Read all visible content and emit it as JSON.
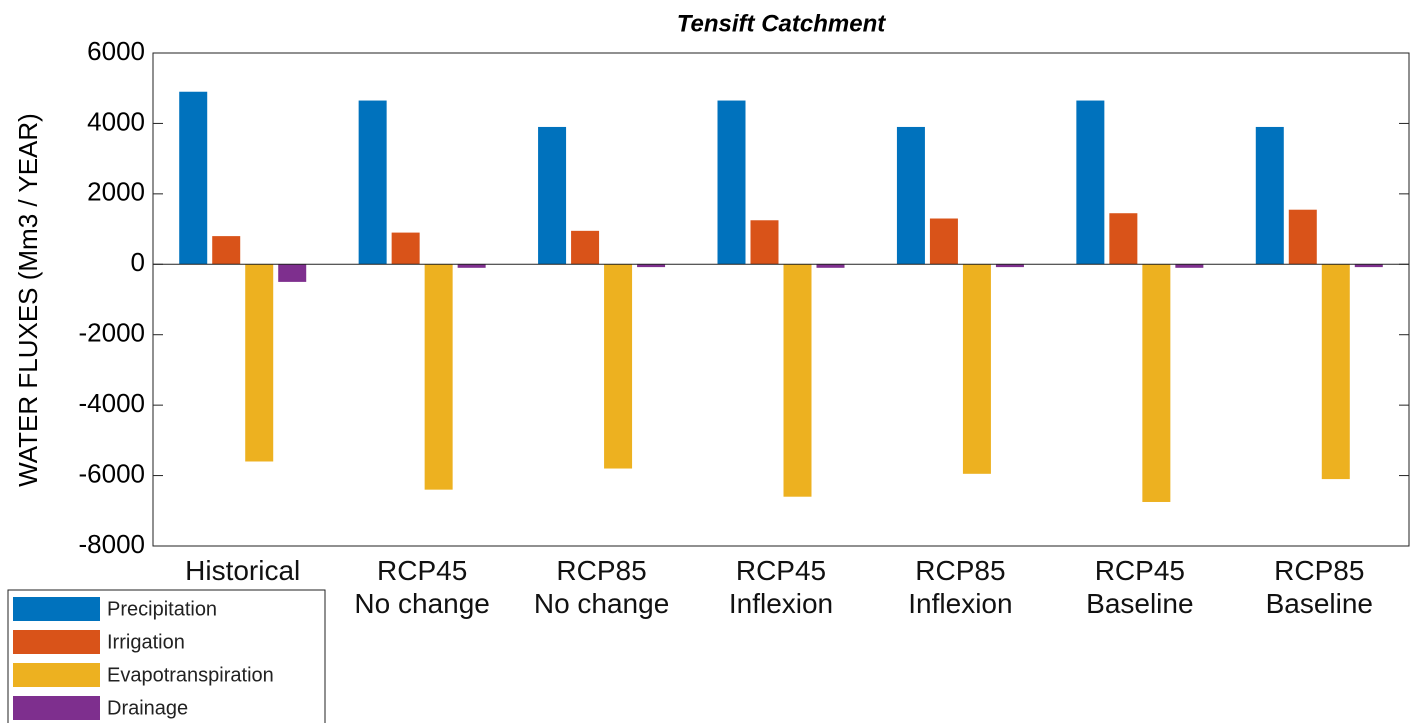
{
  "chart_data": {
    "type": "bar",
    "title": "Tensift Catchment",
    "y_label": "WATER FLUXES (Mm3 / YEAR)",
    "categories": [
      "Historical",
      "RCP45\nNo change",
      "RCP85\nNo change",
      "RCP45\nInflexion",
      "RCP85\nInflexion",
      "RCP45\nBaseline",
      "RCP85\nBaseline"
    ],
    "series": [
      {
        "name": "Precipitation",
        "color": "#0072bd",
        "values": [
          4900,
          4650,
          3900,
          4650,
          3900,
          4650,
          3900
        ]
      },
      {
        "name": "Irrigation",
        "color": "#d95319",
        "values": [
          800,
          900,
          950,
          1250,
          1300,
          1450,
          1550
        ]
      },
      {
        "name": "Evapotranspiration",
        "color": "#edb120",
        "values": [
          -5600,
          -6400,
          -5800,
          -6600,
          -5950,
          -6750,
          -6100
        ]
      },
      {
        "name": "Drainage",
        "color": "#7e2f8e",
        "values": [
          -500,
          -100,
          -80,
          -100,
          -80,
          -100,
          -80
        ]
      }
    ],
    "ylim": [
      -8000,
      6000
    ],
    "yticks": [
      -8000,
      -6000,
      -4000,
      -2000,
      0,
      2000,
      4000,
      6000
    ],
    "grid": false,
    "legend": "bottom-left"
  }
}
